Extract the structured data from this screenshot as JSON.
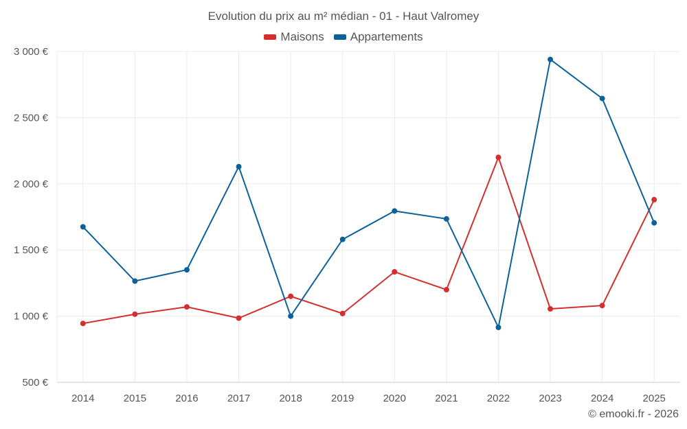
{
  "chart_data": {
    "type": "line",
    "title": "Evolution du prix au m² médian - 01 - Haut Valromey",
    "xlabel": "",
    "ylabel": "",
    "x": [
      "2014",
      "2015",
      "2016",
      "2017",
      "2018",
      "2019",
      "2020",
      "2021",
      "2022",
      "2023",
      "2024",
      "2025"
    ],
    "ylim": [
      500,
      3000
    ],
    "yticks": [
      500,
      1000,
      1500,
      2000,
      2500,
      3000
    ],
    "ytick_labels": [
      "500 €",
      "1 000 €",
      "1 500 €",
      "2 000 €",
      "2 500 €",
      "3 000 €"
    ],
    "grid": true,
    "legend": "top-center",
    "series": [
      {
        "name": "Maisons",
        "color": "#d32f2f",
        "values": [
          945,
          1015,
          1070,
          985,
          1150,
          1020,
          1335,
          1200,
          2200,
          1055,
          1080,
          1880
        ]
      },
      {
        "name": "Appartements",
        "color": "#0b629b",
        "values": [
          1675,
          1265,
          1350,
          2130,
          1000,
          1580,
          1795,
          1735,
          915,
          2940,
          2645,
          1705
        ]
      }
    ]
  },
  "footer": {
    "credit": "© emooki.fr - 2026"
  }
}
